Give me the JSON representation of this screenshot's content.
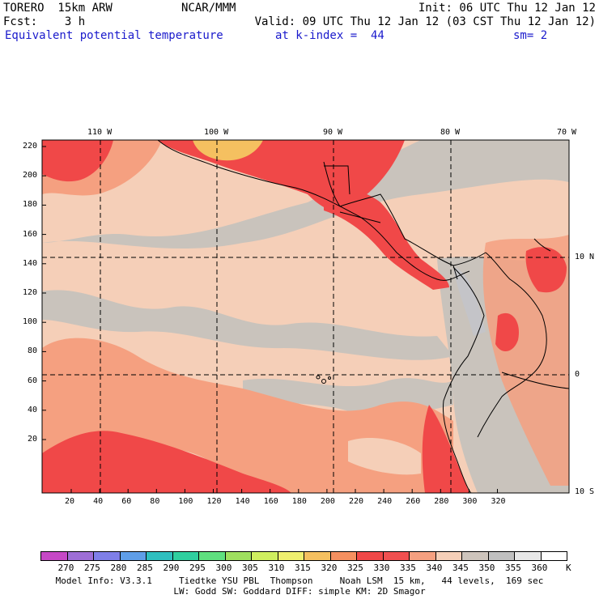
{
  "header": {
    "model": "TORERO  15km ARW",
    "center": "NCAR/MMM",
    "init": "Init: 06 UTC Thu 12 Jan 12",
    "fcst": "Fcst:    3 h",
    "valid": "Valid: 09 UTC Thu 12 Jan 12 (03 CST Thu 12 Jan 12)",
    "field": "Equivalent potential temperature",
    "level": "at k-index =  44",
    "smooth": "sm= 2"
  },
  "axes": {
    "top": [
      "110 W",
      "100 W",
      "90 W",
      "80 W",
      "70 W"
    ],
    "left": [
      "220",
      "200",
      "180",
      "160",
      "140",
      "120",
      "100",
      "80",
      "60",
      "40",
      "20"
    ],
    "bottom": [
      "20",
      "40",
      "60",
      "80",
      "100",
      "120",
      "140",
      "160",
      "180",
      "200",
      "220",
      "240",
      "260",
      "280",
      "300",
      "320"
    ],
    "right": [
      "10 N",
      "0",
      "10 S"
    ]
  },
  "colorbar": {
    "labels": [
      "270",
      "275",
      "280",
      "285",
      "290",
      "295",
      "300",
      "305",
      "310",
      "315",
      "320",
      "325",
      "330",
      "335",
      "340",
      "345",
      "350",
      "355",
      "360"
    ],
    "unit": "K",
    "colors": [
      "#c648c6",
      "#9e6ed6",
      "#7f7fe8",
      "#5f9ee8",
      "#2fbfbf",
      "#2fcf9f",
      "#5fdf7f",
      "#9fdf5f",
      "#cfef5f",
      "#efef6f",
      "#f5c060",
      "#f59060",
      "#f04848",
      "#f05050",
      "#f5a080",
      "#f5cfb8",
      "#cdc4bc",
      "#c0c0c0",
      "#e8e8e8",
      "#ffffff"
    ]
  },
  "footer": {
    "line1": "Model Info: V3.3.1     Tiedtke YSU PBL  Thompson     Noah LSM  15 km,   44 levels,  169 sec",
    "line2": "LW: Godd SW: Goddard DIFF: simple KM: 2D Smagor"
  },
  "palette": {
    "red": "#f04848",
    "salmon": "#f5a080",
    "peach": "#f5cfb8",
    "gray": "#c9c3bc",
    "light_gray": "#c4c4c8",
    "orange": "#f5c060"
  }
}
